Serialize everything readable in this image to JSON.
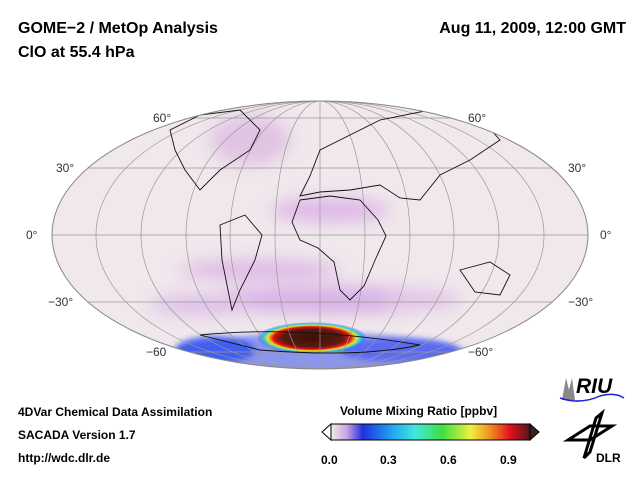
{
  "header": {
    "title": "GOME−2 / MetOp Analysis",
    "subtitle": "ClO at 55.4 hPa",
    "datetime": "Aug 11, 2009, 12:00 GMT"
  },
  "map": {
    "projection": "global ellipse",
    "lat_labels_left": [
      "60°",
      "30°",
      "0°",
      "−30°",
      "−60"
    ],
    "lat_labels_right": [
      "60°",
      "30°",
      "0°",
      "−30°",
      "−60°"
    ],
    "ocean_color": "#f0e8ec",
    "max_color": "#5a1a10"
  },
  "footer": {
    "line1": "4DVar Chemical Data Assimilation",
    "line2": "SACADA Version 1.7",
    "line3": "http://wdc.dlr.de"
  },
  "colorbar": {
    "title": "Volume Mixing Ratio [ppbv]",
    "ticks": [
      "0.0",
      "0.3",
      "0.6",
      "0.9"
    ],
    "min": 0.0,
    "max": 1.0
  },
  "logos": {
    "riu": "RIU",
    "dlr": "DLR"
  }
}
